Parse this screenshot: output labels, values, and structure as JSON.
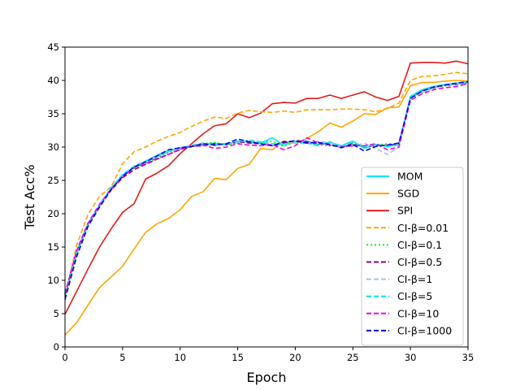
{
  "chart_data": {
    "type": "line",
    "xlabel": "Epoch",
    "ylabel": "Test Acc%",
    "xlim": [
      0,
      35
    ],
    "ylim": [
      0,
      45
    ],
    "xticks": [
      0,
      5,
      10,
      15,
      20,
      25,
      30,
      35
    ],
    "yticks": [
      0,
      5,
      10,
      15,
      20,
      25,
      30,
      35,
      40,
      45
    ],
    "grid": false,
    "legend_position": "lower-right",
    "x": [
      0,
      1,
      2,
      3,
      4,
      5,
      6,
      7,
      8,
      9,
      10,
      11,
      12,
      13,
      14,
      15,
      16,
      17,
      18,
      19,
      20,
      21,
      22,
      23,
      24,
      25,
      26,
      27,
      28,
      29,
      30,
      31,
      32,
      33,
      34,
      35
    ],
    "series": [
      {
        "name": "MOM",
        "color": "#00e5ee",
        "dash": "solid",
        "values": [
          7.8,
          14.2,
          18.5,
          21.2,
          23.8,
          25.8,
          27.0,
          27.7,
          28.6,
          29.3,
          29.9,
          30.1,
          30.4,
          30.6,
          30.3,
          30.9,
          30.7,
          30.6,
          31.4,
          30.3,
          30.8,
          30.9,
          30.4,
          30.7,
          30.2,
          30.9,
          29.8,
          30.4,
          30.1,
          30.3,
          37.6,
          38.6,
          39.1,
          39.4,
          39.6,
          39.8
        ]
      },
      {
        "name": "SGD",
        "color": "#ffa500",
        "dash": "solid",
        "values": [
          1.8,
          3.6,
          6.3,
          8.9,
          10.5,
          12.1,
          14.7,
          17.2,
          18.5,
          19.3,
          20.6,
          22.6,
          23.3,
          25.3,
          25.1,
          26.8,
          27.4,
          29.8,
          29.6,
          30.9,
          30.5,
          31.3,
          32.3,
          33.6,
          33.0,
          33.9,
          35.0,
          34.9,
          35.9,
          36.0,
          39.2,
          39.7,
          39.7,
          39.9,
          40.0,
          39.9
        ]
      },
      {
        "name": "SPI",
        "color": "#e31a1c",
        "dash": "solid",
        "values": [
          4.9,
          8.3,
          11.7,
          15.0,
          17.7,
          20.2,
          21.5,
          25.2,
          26.1,
          27.2,
          29.0,
          30.5,
          32.0,
          33.2,
          33.5,
          35.0,
          34.4,
          35.1,
          36.5,
          36.7,
          36.6,
          37.3,
          37.3,
          37.8,
          37.3,
          37.8,
          38.3,
          37.5,
          37.0,
          37.6,
          42.6,
          42.7,
          42.7,
          42.6,
          42.9,
          42.5
        ]
      },
      {
        "name": "CI-β=0.01",
        "color": "#ffa500",
        "dash": "6,3",
        "values": [
          7.5,
          15.2,
          19.9,
          22.6,
          24.0,
          27.5,
          29.3,
          30.0,
          30.9,
          31.6,
          32.2,
          33.1,
          33.9,
          34.5,
          34.3,
          35.1,
          35.5,
          35.3,
          35.2,
          35.4,
          35.2,
          35.6,
          35.6,
          35.6,
          35.7,
          35.7,
          35.6,
          35.3,
          35.8,
          36.6,
          40.0,
          40.6,
          40.7,
          40.9,
          41.2,
          41.0
        ]
      },
      {
        "name": "CI-β=0.1",
        "color": "#00ff00",
        "dash": "2,3",
        "values": [
          7.9,
          14.1,
          18.3,
          21.1,
          23.7,
          25.6,
          26.8,
          27.6,
          28.4,
          29.2,
          29.7,
          30.0,
          30.5,
          30.7,
          30.3,
          30.6,
          30.9,
          30.7,
          30.9,
          30.1,
          30.7,
          30.6,
          30.3,
          30.2,
          30.0,
          30.4,
          30.2,
          30.3,
          30.5,
          30.4,
          37.2,
          38.2,
          38.8,
          39.2,
          39.4,
          39.5
        ]
      },
      {
        "name": "CI-β=0.5",
        "color": "#990066",
        "dash": "6,3",
        "values": [
          8.0,
          14.3,
          18.4,
          21.2,
          23.5,
          25.4,
          26.6,
          27.4,
          28.2,
          28.9,
          29.6,
          30.1,
          30.2,
          30.5,
          30.4,
          30.8,
          30.6,
          30.5,
          30.2,
          30.6,
          31.0,
          30.8,
          30.5,
          30.3,
          30.1,
          30.5,
          30.0,
          30.2,
          30.3,
          30.5,
          37.4,
          38.4,
          38.9,
          39.3,
          39.4,
          39.7
        ]
      },
      {
        "name": "CI-β=1",
        "color": "#9ecae1",
        "dash": "6,3",
        "values": [
          7.7,
          13.9,
          18.2,
          21.0,
          23.6,
          25.7,
          27.2,
          27.8,
          28.7,
          29.4,
          29.7,
          30.3,
          30.6,
          30.2,
          30.6,
          30.6,
          31.1,
          30.8,
          30.2,
          30.5,
          30.6,
          30.5,
          30.9,
          30.6,
          30.3,
          30.1,
          30.6,
          29.8,
          28.9,
          30.0,
          37.3,
          38.3,
          38.9,
          39.3,
          39.4,
          39.8
        ]
      },
      {
        "name": "CI-β=5",
        "color": "#00e5ee",
        "dash": "6,3",
        "values": [
          7.6,
          14.0,
          18.4,
          21.3,
          23.9,
          25.9,
          27.1,
          27.9,
          28.8,
          29.5,
          29.9,
          30.2,
          30.6,
          30.3,
          30.5,
          30.8,
          30.9,
          30.7,
          30.5,
          30.4,
          30.9,
          30.6,
          30.2,
          30.8,
          30.1,
          30.7,
          30.0,
          30.4,
          30.2,
          30.3,
          37.5,
          38.5,
          39.0,
          39.4,
          39.5,
          39.7
        ]
      },
      {
        "name": "CI-β=10",
        "color": "#ee00ee",
        "dash": "6,3",
        "values": [
          7.9,
          14.4,
          18.6,
          21.4,
          23.7,
          25.5,
          26.9,
          27.5,
          28.3,
          28.9,
          29.7,
          30.1,
          30.3,
          29.8,
          30.0,
          30.5,
          30.3,
          30.2,
          30.4,
          29.6,
          30.2,
          31.4,
          30.6,
          30.3,
          30.0,
          30.2,
          30.2,
          30.5,
          29.6,
          30.0,
          37.0,
          38.0,
          38.6,
          38.9,
          39.1,
          39.5
        ]
      },
      {
        "name": "CI-β=1000",
        "color": "#0000ee",
        "dash": "6,3",
        "values": [
          7.1,
          13.5,
          18.1,
          21.0,
          23.6,
          25.6,
          27.0,
          27.8,
          28.7,
          29.6,
          29.9,
          30.1,
          30.5,
          30.3,
          30.5,
          31.2,
          30.8,
          30.5,
          30.2,
          30.8,
          30.9,
          30.6,
          30.7,
          30.4,
          29.9,
          30.4,
          29.4,
          30.1,
          30.3,
          30.6,
          37.3,
          38.4,
          39.0,
          39.3,
          39.6,
          39.8
        ]
      }
    ]
  }
}
